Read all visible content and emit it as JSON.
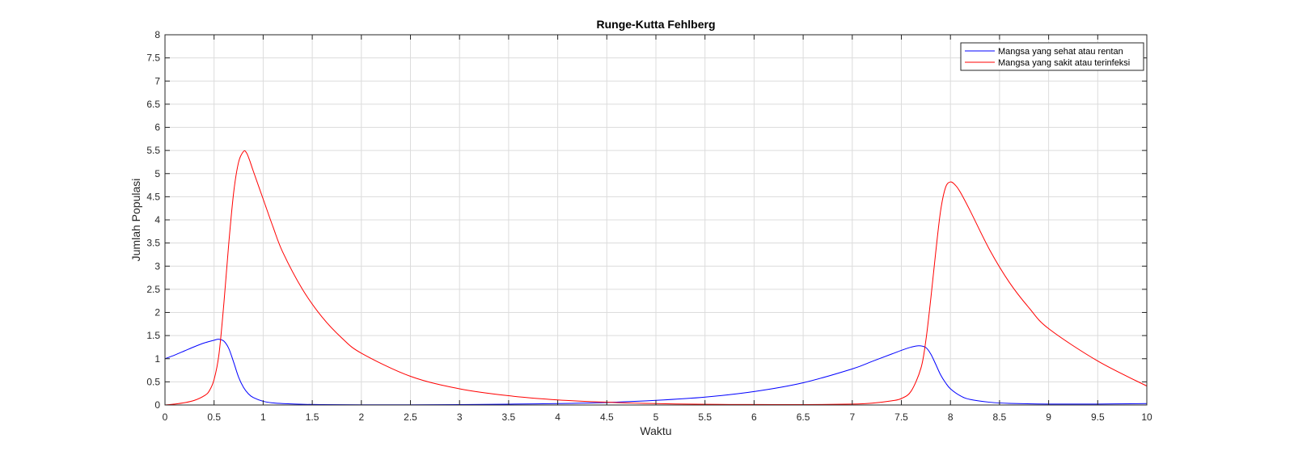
{
  "chart_data": {
    "type": "line",
    "title": "Runge-Kutta Fehlberg",
    "xlabel": "Waktu",
    "ylabel": "Jumlah Populasi",
    "xlim": [
      0,
      10
    ],
    "ylim": [
      0,
      8
    ],
    "xticks": [
      0,
      0.5,
      1,
      1.5,
      2,
      2.5,
      3,
      3.5,
      4,
      4.5,
      5,
      5.5,
      6,
      6.5,
      7,
      7.5,
      8,
      8.5,
      9,
      9.5,
      10
    ],
    "yticks": [
      0,
      0.5,
      1,
      1.5,
      2,
      2.5,
      3,
      3.5,
      4,
      4.5,
      5,
      5.5,
      6,
      6.5,
      7,
      7.5,
      8
    ],
    "grid": true,
    "legend_position": "top-right",
    "series": [
      {
        "name": "Mangsa yang sehat atau rentan",
        "color": "#0000ff",
        "x": [
          0,
          0.1,
          0.2,
          0.3,
          0.4,
          0.5,
          0.55,
          0.6,
          0.65,
          0.7,
          0.75,
          0.8,
          0.85,
          0.9,
          1.0,
          1.1,
          1.2,
          1.4,
          1.6,
          2.0,
          2.5,
          3.0,
          3.5,
          4.0,
          4.5,
          5.0,
          5.5,
          6.0,
          6.5,
          7.0,
          7.2,
          7.4,
          7.5,
          7.6,
          7.68,
          7.75,
          7.8,
          7.85,
          7.9,
          7.95,
          8.0,
          8.1,
          8.2,
          8.4,
          8.6,
          9.0,
          9.5,
          10.0
        ],
        "y": [
          1.0,
          1.08,
          1.17,
          1.26,
          1.34,
          1.4,
          1.42,
          1.38,
          1.22,
          0.92,
          0.6,
          0.38,
          0.24,
          0.16,
          0.08,
          0.045,
          0.03,
          0.015,
          0.008,
          0.004,
          0.005,
          0.009,
          0.018,
          0.03,
          0.055,
          0.1,
          0.17,
          0.29,
          0.48,
          0.78,
          0.94,
          1.1,
          1.18,
          1.25,
          1.28,
          1.24,
          1.1,
          0.88,
          0.65,
          0.48,
          0.35,
          0.2,
          0.12,
          0.06,
          0.035,
          0.02,
          0.02,
          0.03
        ]
      },
      {
        "name": "Mangsa yang sakit atau terinfeksi",
        "color": "#ff0000",
        "x": [
          0,
          0.1,
          0.2,
          0.3,
          0.4,
          0.45,
          0.5,
          0.55,
          0.6,
          0.65,
          0.7,
          0.75,
          0.8,
          0.83,
          0.86,
          0.9,
          1.0,
          1.1,
          1.2,
          1.4,
          1.6,
          1.8,
          2.0,
          2.5,
          3.0,
          3.5,
          4.0,
          4.5,
          5.0,
          5.5,
          6.0,
          6.5,
          7.0,
          7.2,
          7.4,
          7.5,
          7.6,
          7.7,
          7.75,
          7.8,
          7.85,
          7.9,
          7.95,
          8.0,
          8.05,
          8.1,
          8.2,
          8.4,
          8.6,
          8.8,
          9.0,
          9.5,
          10.0
        ],
        "y": [
          0.0,
          0.02,
          0.05,
          0.1,
          0.2,
          0.3,
          0.55,
          1.1,
          2.2,
          3.5,
          4.6,
          5.25,
          5.48,
          5.45,
          5.3,
          5.05,
          4.45,
          3.85,
          3.3,
          2.5,
          1.9,
          1.45,
          1.12,
          0.62,
          0.35,
          0.2,
          0.11,
          0.06,
          0.03,
          0.015,
          0.01,
          0.008,
          0.02,
          0.04,
          0.09,
          0.14,
          0.3,
          0.8,
          1.4,
          2.3,
          3.3,
          4.2,
          4.7,
          4.82,
          4.75,
          4.6,
          4.2,
          3.35,
          2.65,
          2.1,
          1.65,
          0.95,
          0.41
        ]
      }
    ]
  }
}
